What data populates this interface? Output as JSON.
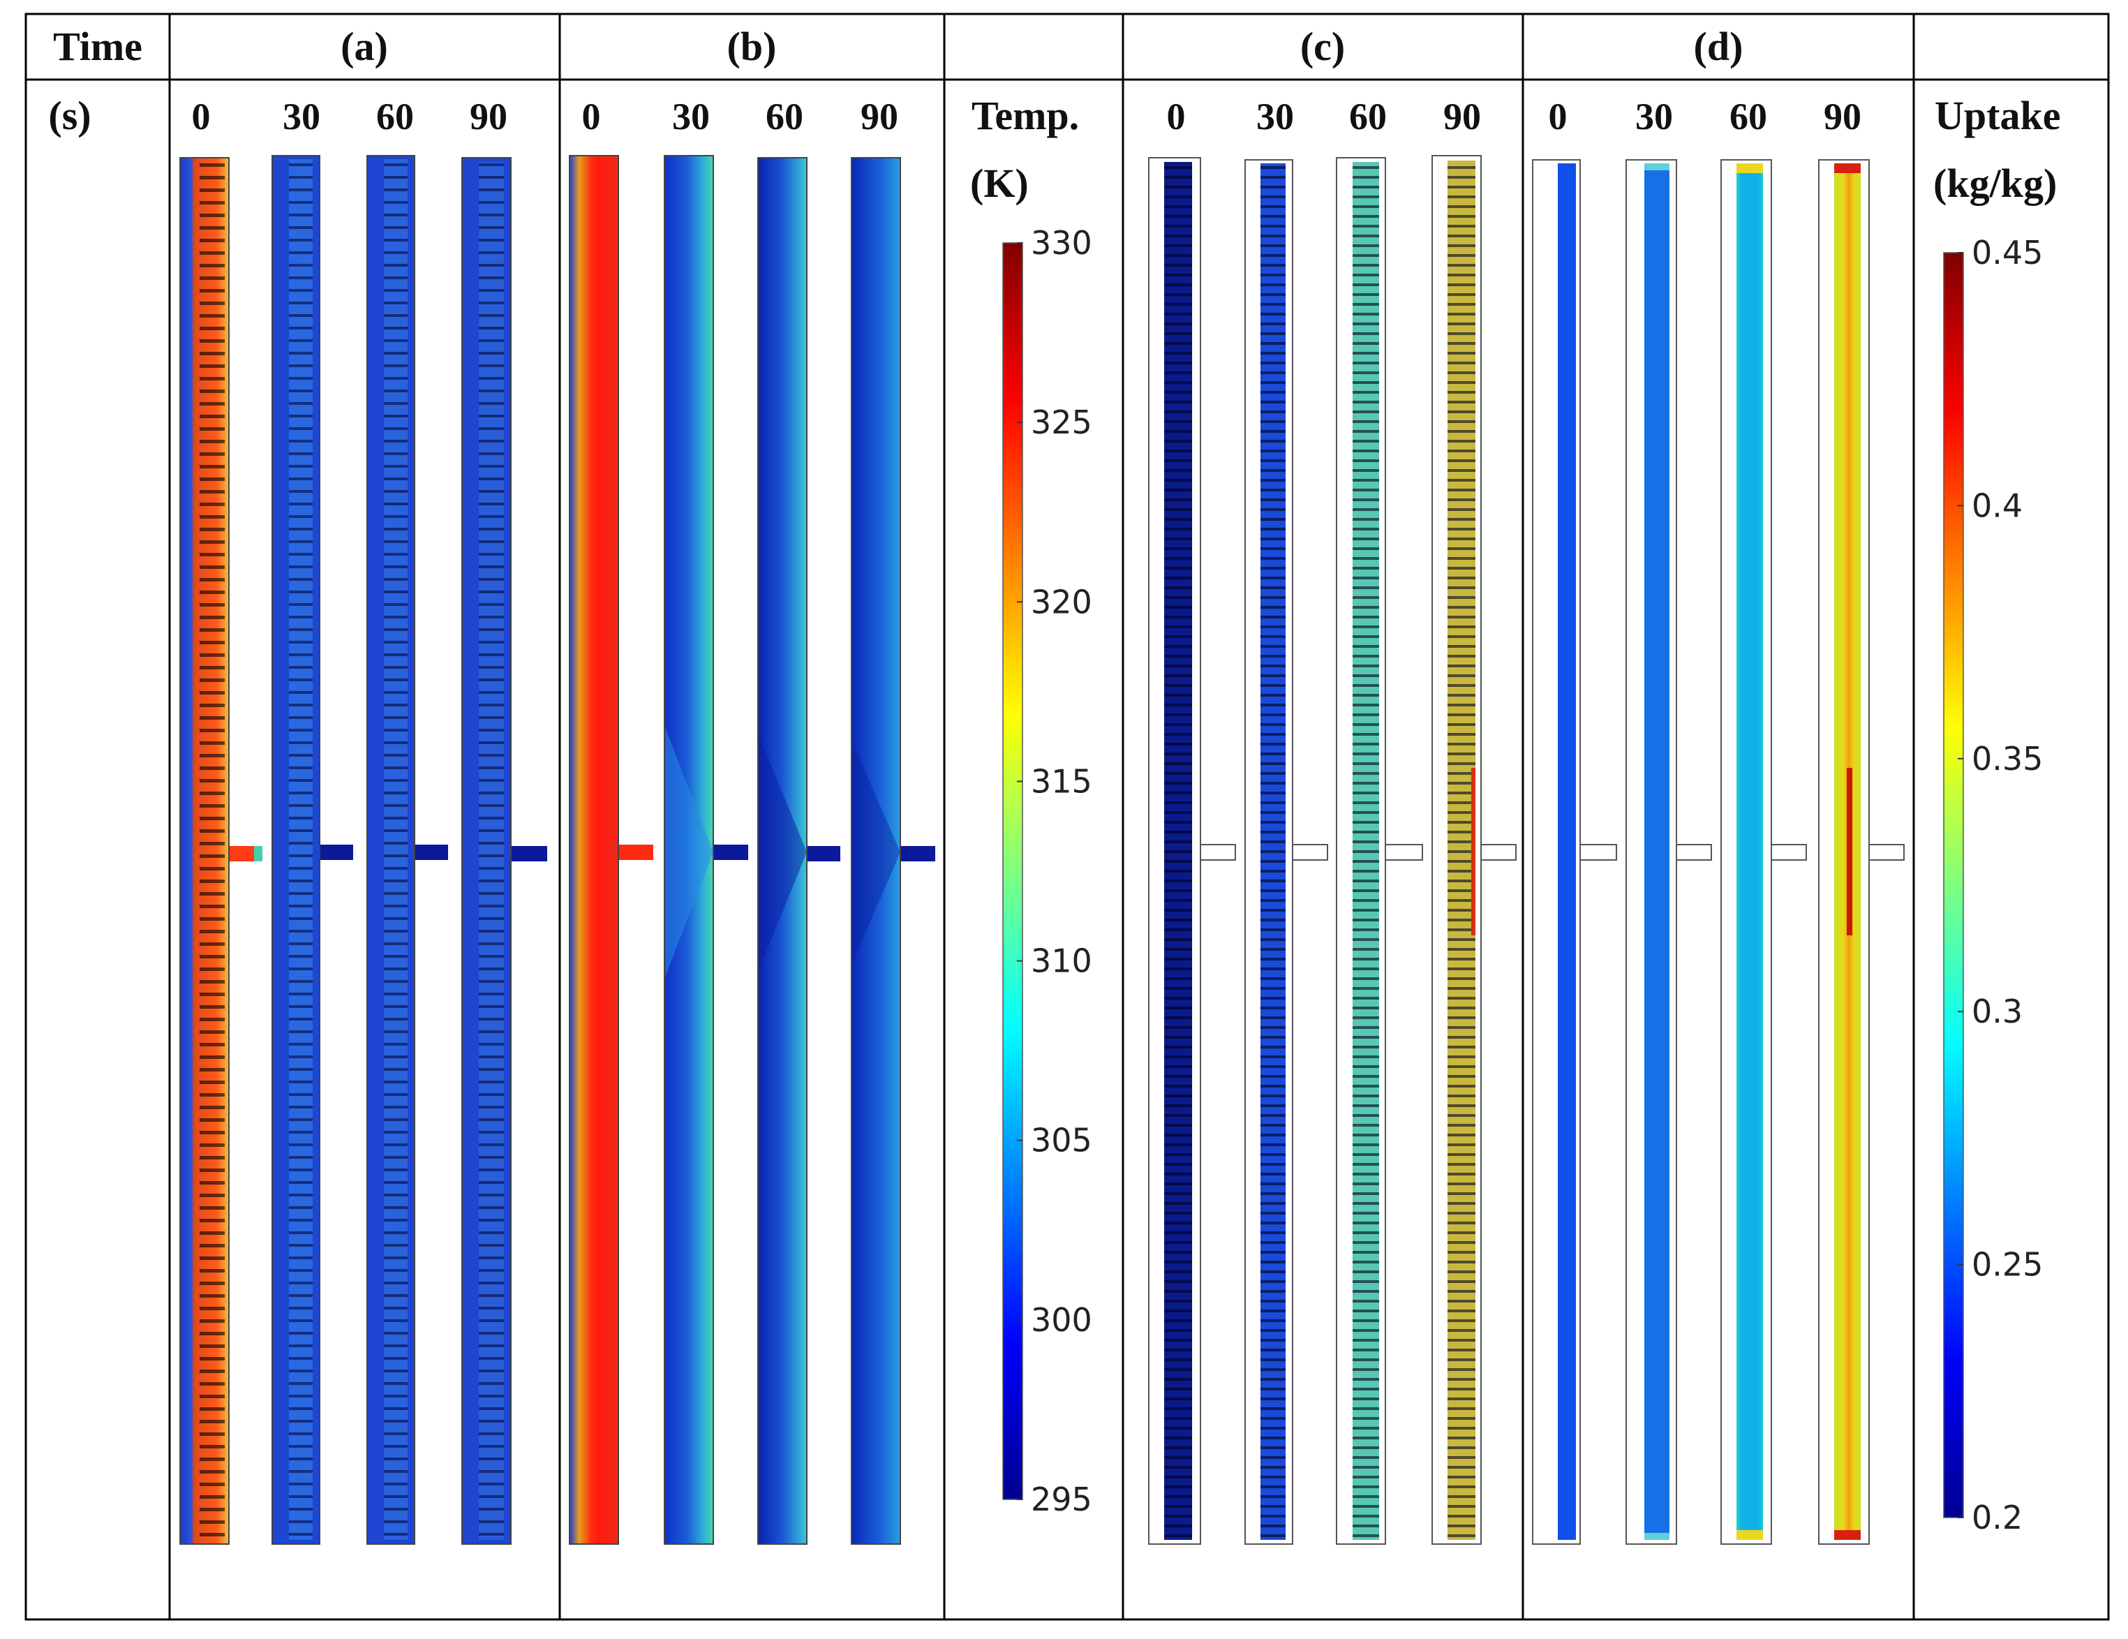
{
  "header": {
    "time_label": "Time",
    "unit_label": "(s)",
    "panels": [
      {
        "label": "(a)",
        "times": [
          "0",
          "30",
          "60",
          "90"
        ]
      },
      {
        "label": "(b)",
        "times": [
          "0",
          "30",
          "60",
          "90"
        ]
      },
      {
        "label": "(c)",
        "times": [
          "0",
          "30",
          "60",
          "90"
        ]
      },
      {
        "label": "(d)",
        "times": [
          "0",
          "30",
          "60",
          "90"
        ]
      }
    ]
  },
  "temp_bar": {
    "title_line1": "Temp.",
    "title_line2": "(K)",
    "ticks": [
      "330",
      "325",
      "320",
      "315",
      "310",
      "305",
      "300",
      "295"
    ]
  },
  "uptake_bar": {
    "title_line1": "Uptake",
    "title_line2": "(kg/kg)",
    "ticks": [
      "0.45",
      "0.4",
      "0.35",
      "0.3",
      "0.25",
      "0.2"
    ]
  },
  "colors": {
    "jet_dark_blue": "#00008f",
    "jet_blue": "#0000ff",
    "jet_cyan": "#00ffff",
    "jet_yellow": "#ffff00",
    "jet_red": "#ff0000",
    "jet_dark_red": "#800000"
  }
}
